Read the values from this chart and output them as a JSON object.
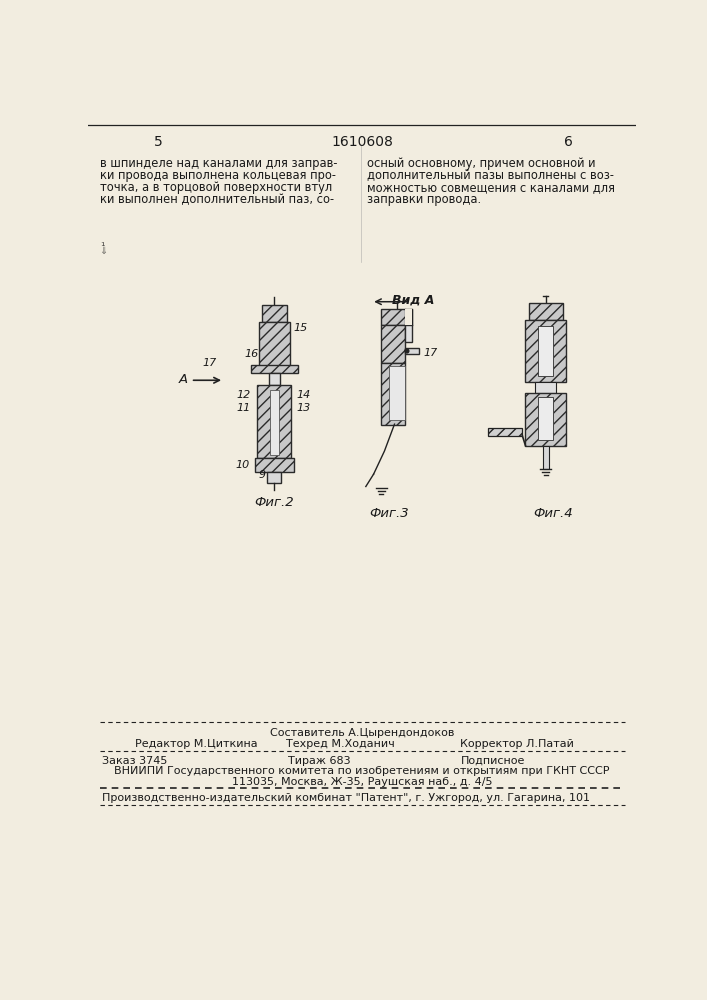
{
  "page_color": "#f2ede0",
  "text_color": "#1a1a1a",
  "line_color": "#222222",
  "hatch_fc": "#c8c8c8",
  "page_number_left": "5",
  "page_number_center": "1610608",
  "page_number_right": "6",
  "left_column_text": [
    "в шпинделе над каналами для заправ-",
    "ки провода выполнена кольцевая про-",
    "точка, а в торцовой поверхности втул",
    "ки выполнен дополнительный паз, со-"
  ],
  "right_column_text": [
    "осный основному, причем основной и",
    "дополнительный пазы выполнены с воз-",
    "можностью совмещения с каналами для",
    "заправки провода."
  ],
  "footer_sestavitel": "Составитель А.Цырендондоков",
  "footer_redaktor": "Редактор М.Циткина",
  "footer_tehred": "Техред М.Ходанич",
  "footer_korrektor": "Корректор Л.Патай",
  "footer_zakaz": "Заказ 3745",
  "footer_tirazh": "Тираж 683",
  "footer_podpisnoe": "Подписное",
  "footer_vniipи": "ВНИИПИ Государственного комитета по изобретениям и открытиям при ГКНТ СССР",
  "footer_addr": "113035, Москва, Ж-35, Раушская наб., д. 4/5",
  "footer_proizv": "Производственно-издательский комбинат \"Патент\", г. Ужгород, ул. Гагарина, 101",
  "fig2_label": "Фиг.2",
  "fig3_label": "Фиг.3",
  "fig4_label": "Фиг.4",
  "vid_a_label": "Вид А",
  "small_arrow_label": "А"
}
